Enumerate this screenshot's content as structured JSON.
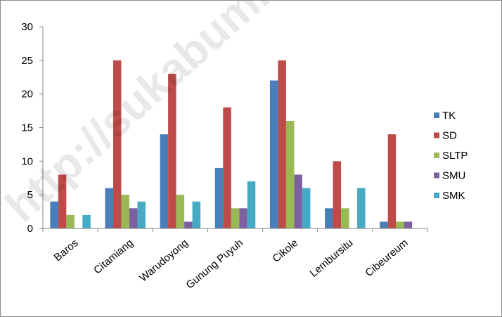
{
  "watermark": "http://sukabumikota",
  "chart_data": {
    "type": "bar",
    "categories": [
      "Baros",
      "Citamiang",
      "Warudoyong",
      "Gunung Puyuh",
      "Cikole",
      "Lembursitu",
      "Cibeureum"
    ],
    "series": [
      {
        "name": "TK",
        "color": "#4a7ebb",
        "values": [
          4,
          6,
          14,
          9,
          22,
          3,
          1
        ]
      },
      {
        "name": "SD",
        "color": "#be4b48",
        "values": [
          8,
          25,
          23,
          18,
          25,
          10,
          14
        ]
      },
      {
        "name": "SLTP",
        "color": "#98b954",
        "values": [
          2,
          5,
          5,
          3,
          16,
          3,
          1
        ]
      },
      {
        "name": "SMU",
        "color": "#7d60a0",
        "values": [
          0,
          3,
          1,
          3,
          8,
          0,
          1
        ]
      },
      {
        "name": "SMK",
        "color": "#46aac5",
        "values": [
          2,
          4,
          4,
          7,
          6,
          6,
          0
        ]
      }
    ],
    "yticks": [
      "0",
      "5",
      "10",
      "15",
      "20",
      "25",
      "30"
    ],
    "ylim": [
      0,
      30
    ],
    "grid": false,
    "legend": "right"
  }
}
